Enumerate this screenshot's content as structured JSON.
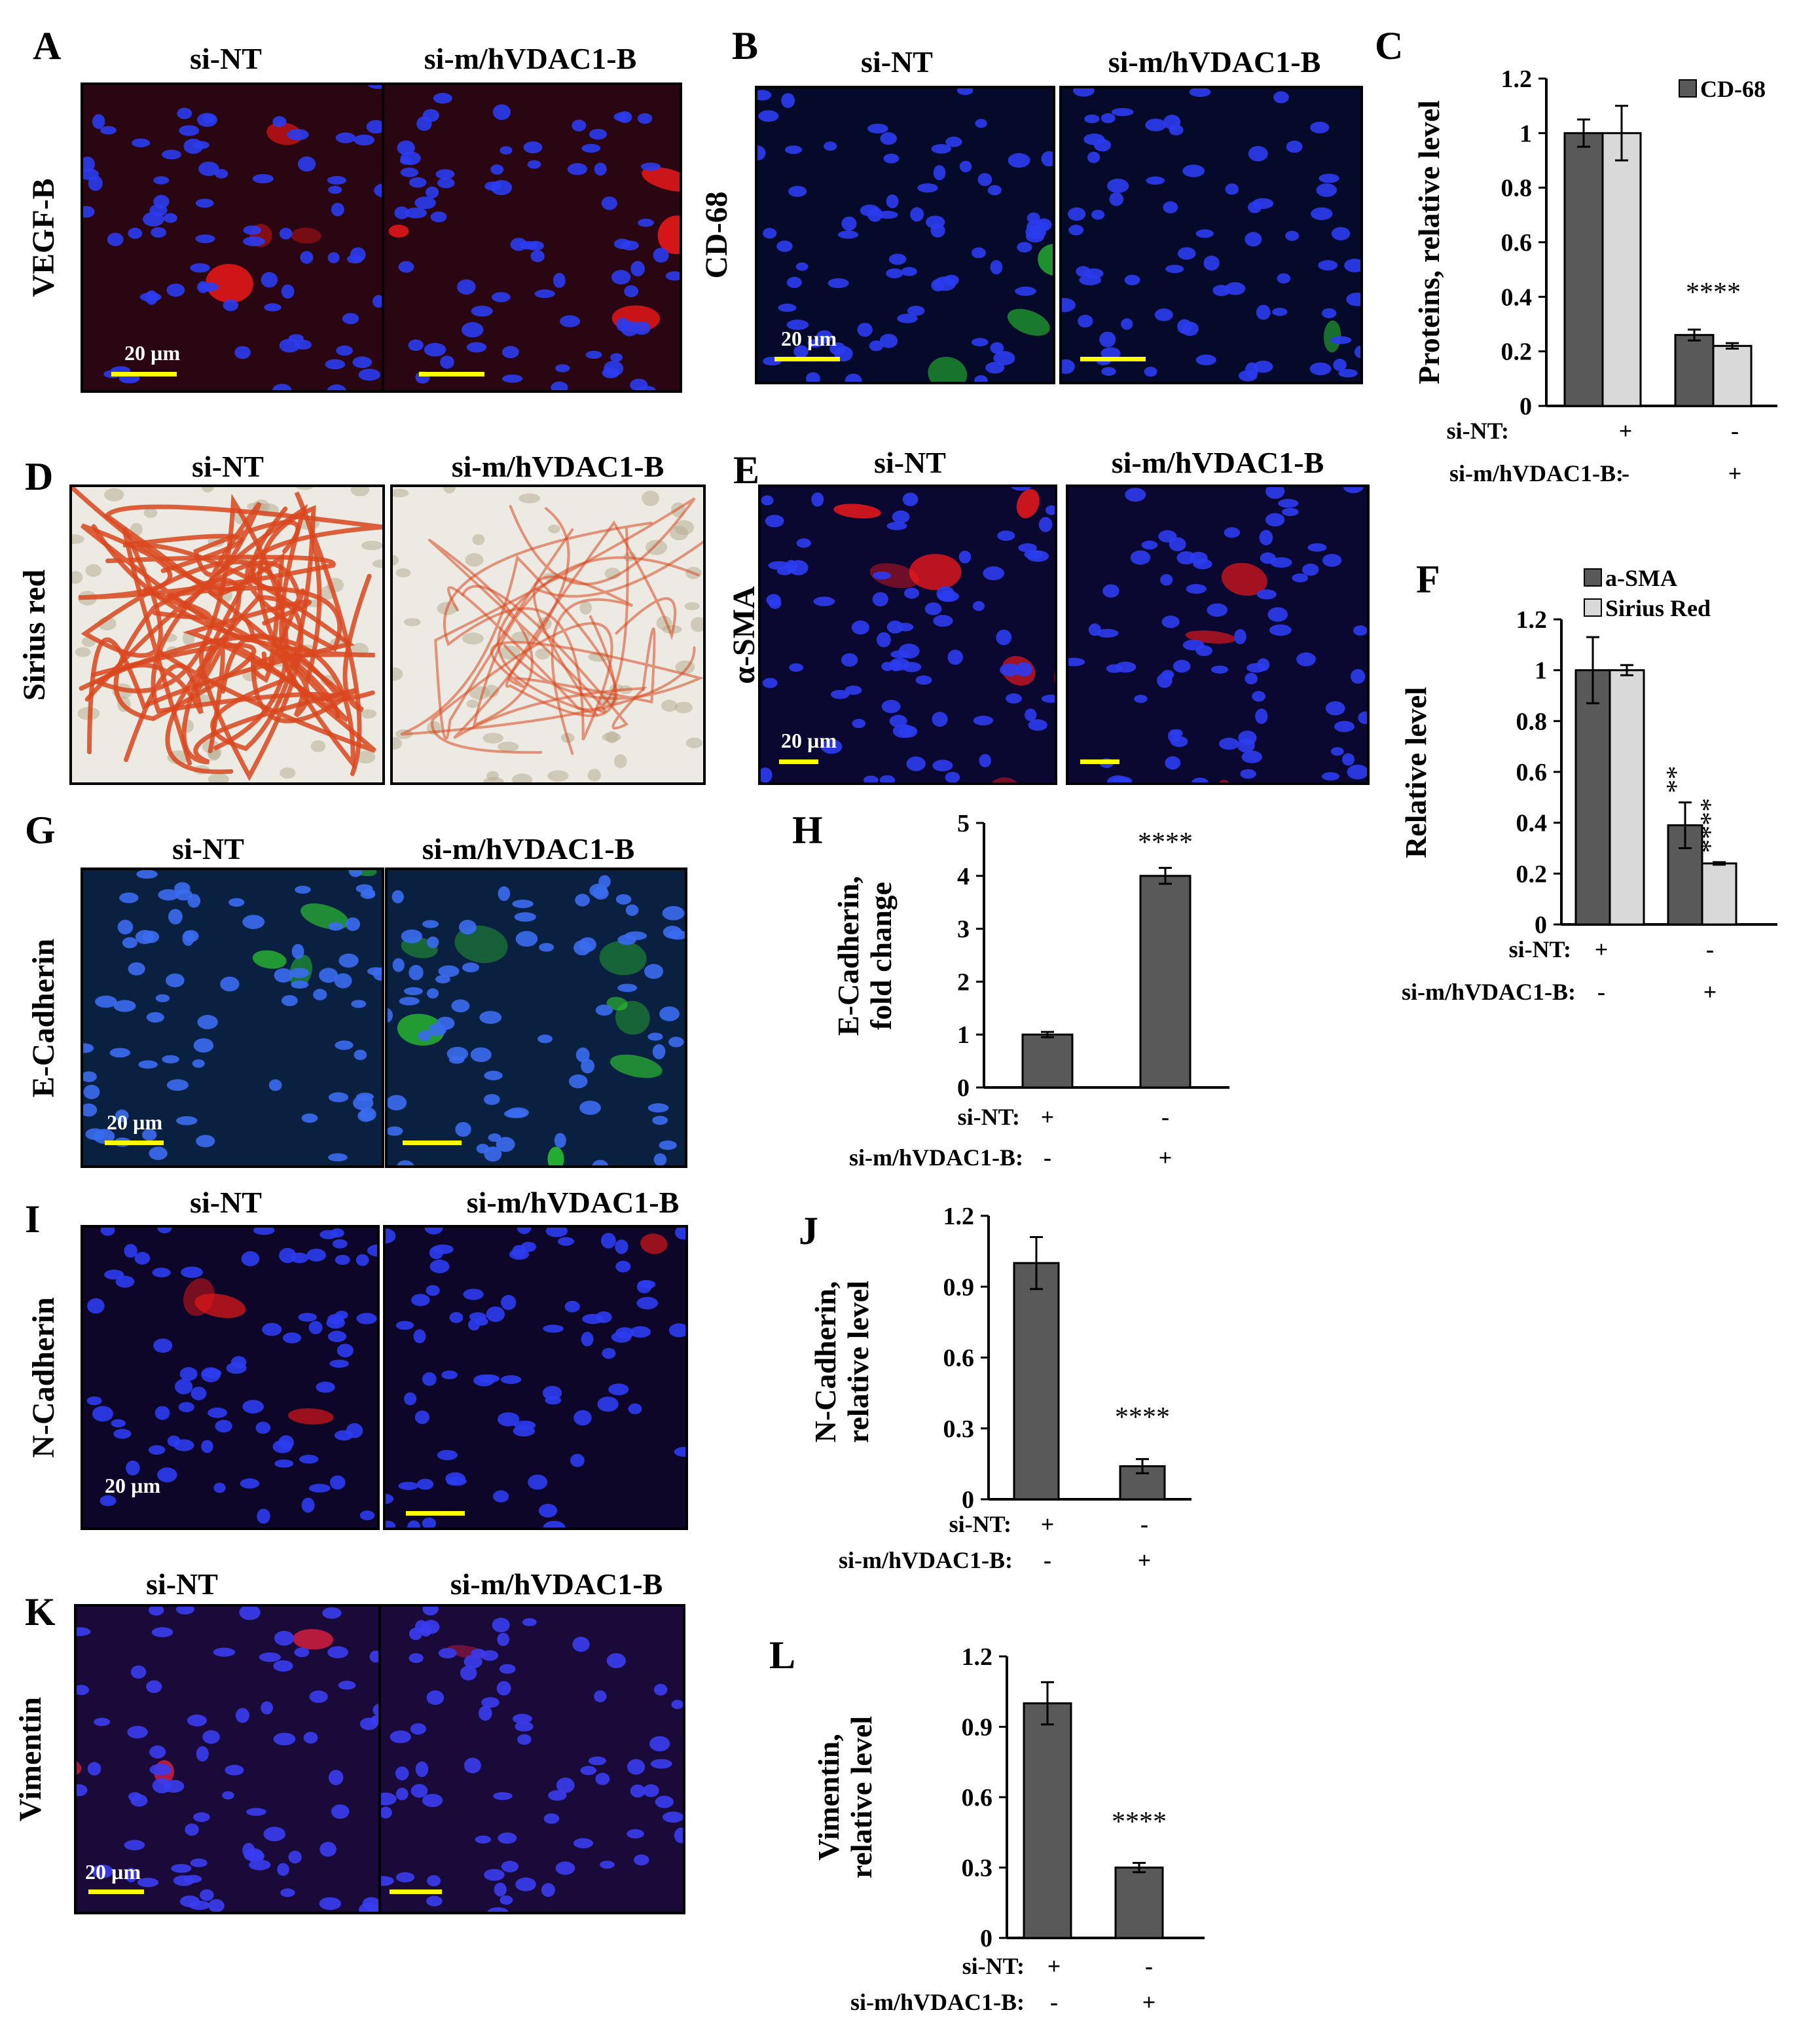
{
  "colors": {
    "bar_dark": "#595959",
    "bar_light": "#d9d9d9",
    "scale_bar": "#ffff00"
  },
  "panel_labels": [
    "A",
    "B",
    "C",
    "D",
    "E",
    "F",
    "G",
    "H",
    "I",
    "J",
    "K",
    "L"
  ],
  "micrographs": [
    {
      "id": "A",
      "stain": "VEGF-B",
      "left": "si-NT",
      "right": "si-m/hVDAC1-B",
      "scale": "20 µm",
      "nucleus": "#2b3cf0",
      "signal": "#ff1a1a",
      "background": "#2a0612"
    },
    {
      "id": "B",
      "stain": "CD-68",
      "left": "si-NT",
      "right": "si-m/hVDAC1-B",
      "scale": "20 µm",
      "nucleus": "#2b3cf0",
      "signal": "#33ff33",
      "background": "#050a2a"
    },
    {
      "id": "D",
      "stain": "Sirius red",
      "left": "si-NT",
      "right": "si-m/hVDAC1-B",
      "scale": "",
      "nucleus": "#b8ad93",
      "signal": "#d9471f",
      "background": "#eceae2"
    },
    {
      "id": "E",
      "stain": "α-SMA",
      "left": "si-NT",
      "right": "si-m/hVDAC1-B",
      "scale": "20 µm",
      "nucleus": "#2b3cf0",
      "signal": "#ff1a1a",
      "background": "#0a0730"
    },
    {
      "id": "G",
      "stain": "E-Cadherin",
      "left": "si-NT",
      "right": "si-m/hVDAC1-B",
      "scale": "20 µm",
      "nucleus": "#3a6cf0",
      "signal": "#2ed62e",
      "background": "#0a2040"
    },
    {
      "id": "I",
      "stain": "N-Cadherin",
      "left": "si-NT",
      "right": "si-m/hVDAC1-B",
      "scale": "20 µm",
      "nucleus": "#2b3cf0",
      "signal": "#e01818",
      "background": "#0d0628"
    },
    {
      "id": "K",
      "stain": "Vimentin",
      "left": "si-NT",
      "right": "si-m/hVDAC1-B",
      "scale": "20 µm",
      "nucleus": "#3a3cf0",
      "signal": "#e02040",
      "background": "#1a0a3a"
    }
  ],
  "condition_labels": {
    "si_nt": "si-NT:",
    "si_vdac": "si-m/hVDAC1-B:",
    "plus": "+",
    "minus": "-"
  },
  "chart_data": [
    {
      "id": "C",
      "type": "bar",
      "ylabel": "Proteins,  relative level",
      "ylim": [
        0,
        1.2
      ],
      "ticks": [
        "0",
        "0.2",
        "0.4",
        "0.6",
        "0.8",
        "1",
        "1.2"
      ],
      "groups": [
        {
          "si_nt": "+",
          "si_vdac": "-",
          "sig": ""
        },
        {
          "si_nt": "-",
          "si_vdac": "+",
          "sig": "****"
        }
      ],
      "series": [
        {
          "name": "CD-68",
          "color": "#595959",
          "values": [
            1.0,
            0.26
          ],
          "errors": [
            0.05,
            0.02
          ],
          "sig": [
            "",
            ""
          ]
        },
        {
          "name": "",
          "color": "#d9d9d9",
          "values": [
            1.0,
            0.22
          ],
          "errors": [
            0.1,
            0.01
          ],
          "sig": [
            "",
            ""
          ]
        }
      ]
    },
    {
      "id": "F",
      "type": "bar",
      "ylabel": "Relative level",
      "ylim": [
        0,
        1.2
      ],
      "ticks": [
        "0",
        "0.2",
        "0.4",
        "0.6",
        "0.8",
        "1",
        "1.2"
      ],
      "groups": [
        {
          "si_nt": "+",
          "si_vdac": "-",
          "sig": ""
        },
        {
          "si_nt": "-",
          "si_vdac": "+",
          "sig": ""
        }
      ],
      "series": [
        {
          "name": "a-SMA",
          "color": "#595959",
          "values": [
            1.0,
            0.39
          ],
          "errors": [
            0.13,
            0.09
          ],
          "sig": [
            "",
            "**"
          ]
        },
        {
          "name": "Sirius Red",
          "color": "#d9d9d9",
          "values": [
            1.0,
            0.24
          ],
          "errors": [
            0.02,
            0.005
          ],
          "sig": [
            "",
            "****"
          ]
        }
      ]
    },
    {
      "id": "H",
      "type": "bar",
      "ylabel": "E-Cadherin, fold change",
      "ylim": [
        0,
        5
      ],
      "ticks": [
        "0",
        "1",
        "2",
        "3",
        "4",
        "5"
      ],
      "groups": [
        {
          "si_nt": "+",
          "si_vdac": "-",
          "sig": ""
        },
        {
          "si_nt": "-",
          "si_vdac": "+",
          "sig": "****"
        }
      ],
      "series": [
        {
          "name": "",
          "color": "#595959",
          "values": [
            1.0,
            4.0
          ],
          "errors": [
            0.05,
            0.15
          ],
          "sig": [
            "",
            ""
          ]
        }
      ]
    },
    {
      "id": "J",
      "type": "bar",
      "ylabel": "N-Cadherin, relative level",
      "ylim": [
        0,
        1.2
      ],
      "ticks": [
        "0",
        "0.3",
        "0.6",
        "0.9",
        "1.2"
      ],
      "groups": [
        {
          "si_nt": "+",
          "si_vdac": "-",
          "sig": ""
        },
        {
          "si_nt": "-",
          "si_vdac": "+",
          "sig": "****"
        }
      ],
      "series": [
        {
          "name": "",
          "color": "#595959",
          "values": [
            1.0,
            0.14
          ],
          "errors": [
            0.11,
            0.03
          ],
          "sig": [
            "",
            ""
          ]
        }
      ]
    },
    {
      "id": "L",
      "type": "bar",
      "ylabel": "Vimentin, relative level",
      "ylim": [
        0,
        1.2
      ],
      "ticks": [
        "0",
        "0.3",
        "0.6",
        "0.9",
        "1.2"
      ],
      "groups": [
        {
          "si_nt": "+",
          "si_vdac": "-",
          "sig": ""
        },
        {
          "si_nt": "-",
          "si_vdac": "+",
          "sig": "****"
        }
      ],
      "series": [
        {
          "name": "",
          "color": "#595959",
          "values": [
            1.0,
            0.3
          ],
          "errors": [
            0.09,
            0.02
          ],
          "sig": [
            "",
            ""
          ]
        }
      ]
    }
  ]
}
